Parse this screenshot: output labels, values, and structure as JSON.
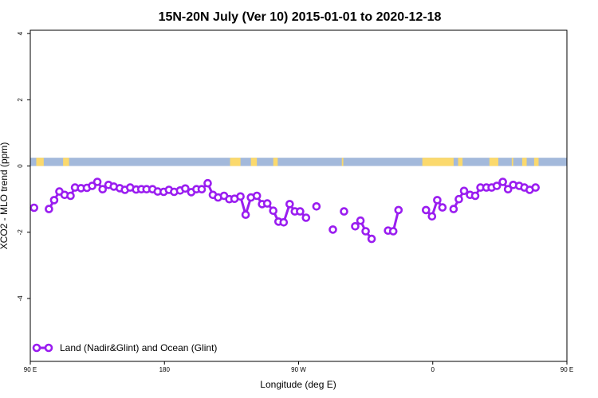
{
  "chart_data": {
    "type": "line",
    "title": "15N-20N July (Ver 10)   2015-01-01 to 2020-12-18",
    "xlabel": "Longitude (deg E)",
    "ylabel": "XCO2 - MLO trend (ppm)",
    "xlim": [
      90,
      450
    ],
    "ylim": [
      -5.9,
      4.1
    ],
    "x_ticks": [
      {
        "value": 90,
        "label": "90 E"
      },
      {
        "value": 180,
        "label": "180"
      },
      {
        "value": 270,
        "label": "90 W"
      },
      {
        "value": 360,
        "label": "0"
      },
      {
        "value": 450,
        "label": "90 E"
      },
      {
        "value": 540,
        "label": "180"
      }
    ],
    "y_ticks": [
      {
        "value": -4,
        "label": "-4"
      },
      {
        "value": -2,
        "label": "-2"
      },
      {
        "value": 0,
        "label": "0"
      },
      {
        "value": 2,
        "label": "2"
      },
      {
        "value": 4,
        "label": "4"
      }
    ],
    "land_ocean_band": {
      "y_range": [
        0,
        0.25
      ],
      "ocean_color": "#a3b9db",
      "land_color": "#fbd96d",
      "land_segments": [
        [
          94,
          99
        ],
        [
          112,
          116
        ],
        [
          224,
          231
        ],
        [
          238,
          242
        ],
        [
          253,
          256
        ],
        [
          299,
          300
        ],
        [
          353,
          374
        ],
        [
          377,
          380
        ],
        [
          398,
          404
        ],
        [
          413,
          414
        ],
        [
          420,
          423
        ],
        [
          428,
          431
        ]
      ]
    },
    "series": [
      {
        "name": "Land (Nadir&Glint) and Ocean (Glint)",
        "color": "#9a1df0",
        "values": [
          [
            92.5,
            -1.26
          ],
          [
            97.5,
            null
          ],
          [
            102.5,
            -1.3
          ],
          [
            106,
            -1.03
          ],
          [
            109.5,
            -0.77
          ],
          [
            113,
            -0.87
          ],
          [
            117,
            -0.9
          ],
          [
            120,
            -0.65
          ],
          [
            124,
            -0.67
          ],
          [
            128,
            -0.66
          ],
          [
            131.5,
            -0.6
          ],
          [
            135,
            -0.48
          ],
          [
            138.5,
            -0.7
          ],
          [
            142.5,
            -0.57
          ],
          [
            146,
            -0.62
          ],
          [
            150,
            -0.67
          ],
          [
            153.5,
            -0.72
          ],
          [
            157,
            -0.65
          ],
          [
            161,
            -0.71
          ],
          [
            164.5,
            -0.7
          ],
          [
            168,
            -0.7
          ],
          [
            172,
            -0.7
          ],
          [
            175.5,
            -0.77
          ],
          [
            179.5,
            -0.78
          ],
          [
            183,
            -0.72
          ],
          [
            186.5,
            -0.78
          ],
          [
            190.5,
            -0.74
          ],
          [
            194,
            -0.68
          ],
          [
            198,
            -0.79
          ],
          [
            201.5,
            -0.7
          ],
          [
            205,
            -0.7
          ],
          [
            209,
            -0.52
          ],
          [
            212.5,
            -0.87
          ],
          [
            216,
            -0.95
          ],
          [
            220,
            -0.9
          ],
          [
            223.5,
            -1.0
          ],
          [
            227,
            -0.99
          ],
          [
            231,
            -0.92
          ],
          [
            234.5,
            -1.47
          ],
          [
            238,
            -0.95
          ],
          [
            242,
            -0.9
          ],
          [
            245.5,
            -1.15
          ],
          [
            249,
            -1.13
          ],
          [
            253,
            -1.35
          ],
          [
            256.5,
            -1.68
          ],
          [
            260,
            -1.7
          ],
          [
            264,
            -1.15
          ],
          [
            267.5,
            -1.37
          ],
          [
            271,
            -1.37
          ],
          [
            275,
            -1.56
          ],
          [
            278.5,
            null
          ],
          [
            282,
            -1.22
          ],
          [
            286,
            null
          ],
          [
            289.5,
            null
          ],
          [
            293,
            -1.92
          ],
          [
            297,
            null
          ],
          [
            300.5,
            -1.37
          ],
          [
            304,
            null
          ],
          [
            308,
            -1.82
          ],
          [
            311.5,
            -1.65
          ],
          [
            315,
            -1.97
          ],
          [
            319,
            -2.2
          ],
          [
            322.5,
            null
          ],
          [
            326,
            null
          ],
          [
            330,
            -1.95
          ],
          [
            333.5,
            -1.97
          ],
          [
            337,
            -1.33
          ],
          [
            341,
            null
          ],
          [
            344.5,
            null
          ],
          [
            348,
            null
          ],
          [
            352,
            null
          ],
          [
            355.5,
            -1.33
          ],
          [
            359.5,
            -1.52
          ],
          [
            363,
            -1.03
          ],
          [
            366.5,
            -1.25
          ],
          [
            370,
            null
          ],
          [
            374,
            -1.3
          ],
          [
            377.5,
            -1.0
          ],
          [
            381,
            -0.75
          ],
          [
            385,
            -0.87
          ],
          [
            388.5,
            -0.9
          ],
          [
            392,
            -0.65
          ],
          [
            396,
            -0.65
          ],
          [
            399.5,
            -0.65
          ],
          [
            403,
            -0.6
          ],
          [
            407,
            -0.48
          ],
          [
            410.5,
            -0.7
          ],
          [
            414,
            -0.57
          ],
          [
            418,
            -0.6
          ],
          [
            421.5,
            -0.65
          ],
          [
            425,
            -0.72
          ],
          [
            429,
            -0.65
          ]
        ]
      }
    ],
    "legend_placement": "bottom-left"
  }
}
